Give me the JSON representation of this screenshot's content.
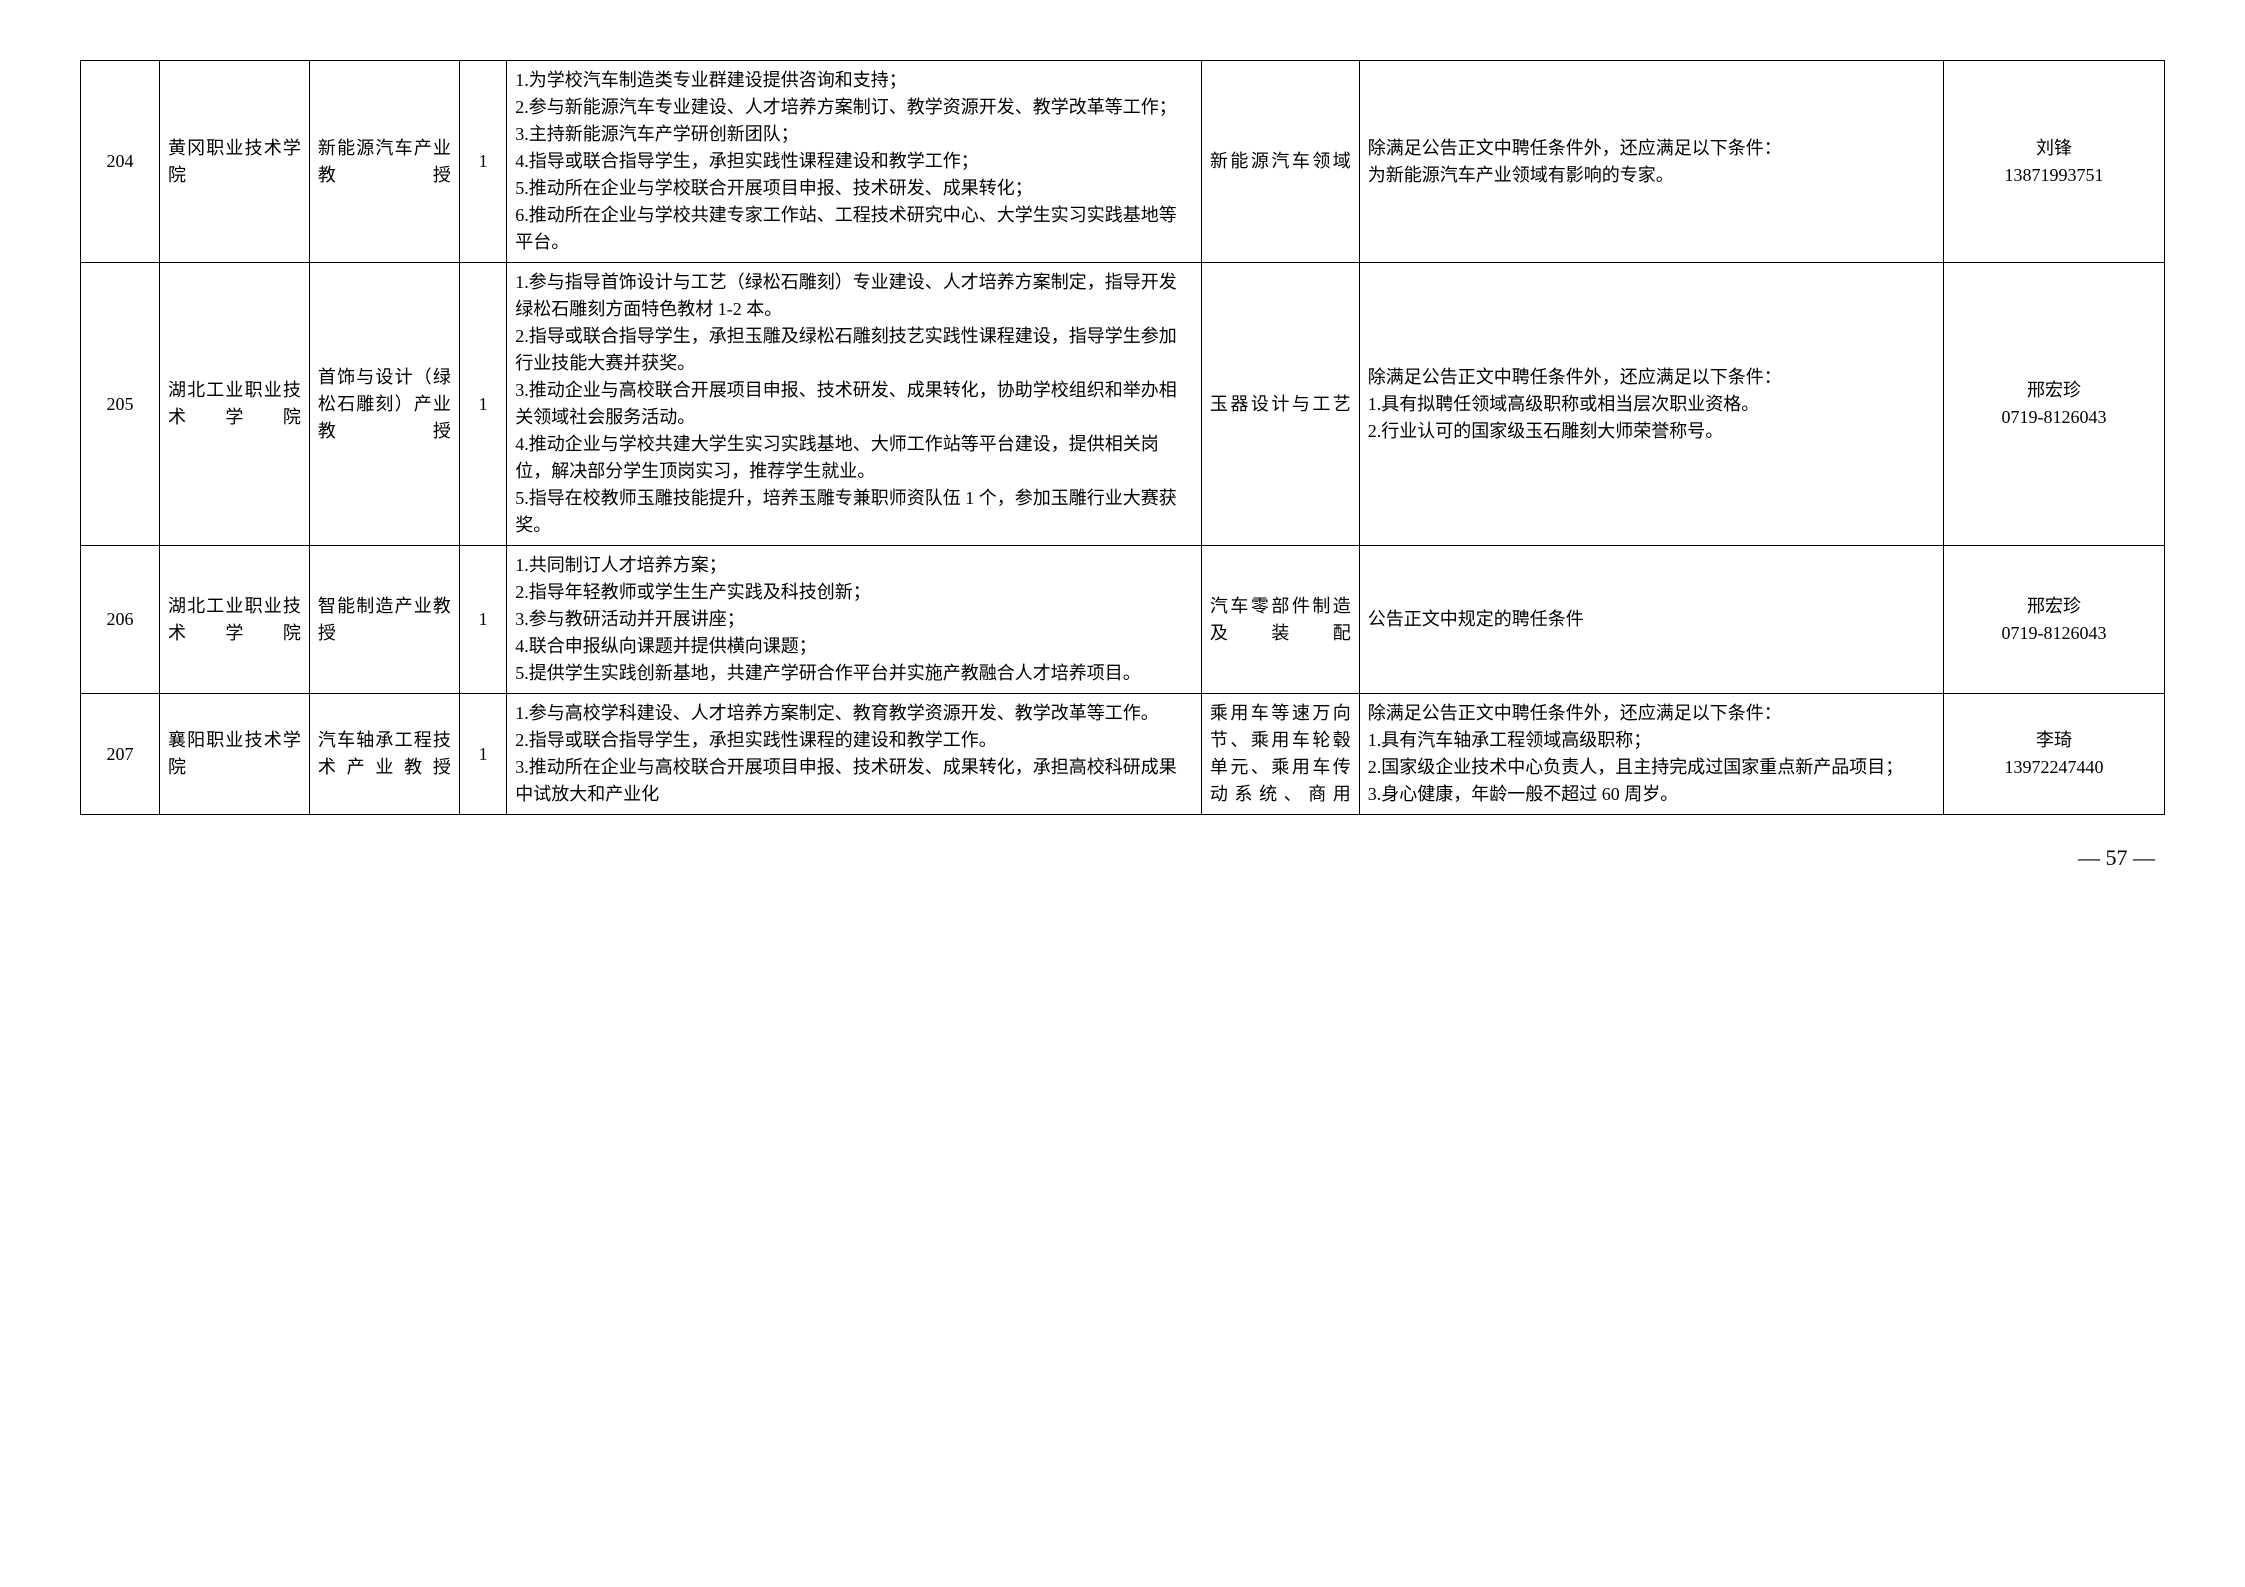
{
  "rows": [
    {
      "num": "204",
      "school": "黄冈职业技术学院",
      "title": "新能源汽车产业教授",
      "count": "1",
      "duty": "1.为学校汽车制造类专业群建设提供咨询和支持；\n2.参与新能源汽车专业建设、人才培养方案制订、教学资源开发、教学改革等工作；\n3.主持新能源汽车产学研创新团队；\n4.指导或联合指导学生，承担实践性课程建设和教学工作；\n5.推动所在企业与学校联合开展项目申报、技术研发、成果转化；\n6.推动所在企业与学校共建专家工作站、工程技术研究中心、大学生实习实践基地等平台。",
      "field": "新能源汽车领域",
      "req": "除满足公告正文中聘任条件外，还应满足以下条件：\n为新能源汽车产业领域有影响的专家。",
      "contact": "刘锋\n13871993751"
    },
    {
      "num": "205",
      "school": "湖北工业职业技术学院",
      "title": "首饰与设计（绿松石雕刻）产业教授",
      "count": "1",
      "duty": "1.参与指导首饰设计与工艺（绿松石雕刻）专业建设、人才培养方案制定，指导开发绿松石雕刻方面特色教材 1-2 本。\n2.指导或联合指导学生，承担玉雕及绿松石雕刻技艺实践性课程建设，指导学生参加行业技能大赛并获奖。\n3.推动企业与高校联合开展项目申报、技术研发、成果转化，协助学校组织和举办相关领域社会服务活动。\n4.推动企业与学校共建大学生实习实践基地、大师工作站等平台建设，提供相关岗位，解决部分学生顶岗实习，推荐学生就业。\n5.指导在校教师玉雕技能提升，培养玉雕专兼职师资队伍 1 个，参加玉雕行业大赛获奖。",
      "field": "玉器设计与工艺",
      "req": "除满足公告正文中聘任条件外，还应满足以下条件：\n1.具有拟聘任领域高级职称或相当层次职业资格。\n2.行业认可的国家级玉石雕刻大师荣誉称号。",
      "contact": "邢宏珍\n0719-8126043"
    },
    {
      "num": "206",
      "school": "湖北工业职业技术学院",
      "title": "智能制造产业教授",
      "count": "1",
      "duty": "1.共同制订人才培养方案；\n2.指导年轻教师或学生生产实践及科技创新；\n3.参与教研活动并开展讲座；\n4.联合申报纵向课题并提供横向课题；\n5.提供学生实践创新基地，共建产学研合作平台并实施产教融合人才培养项目。",
      "field": "汽车零部件制造及装配",
      "req": "公告正文中规定的聘任条件",
      "contact": "邢宏珍\n0719-8126043"
    },
    {
      "num": "207",
      "school": "襄阳职业技术学院",
      "title": "汽车轴承工程技术产业教授",
      "count": "1",
      "duty": "1.参与高校学科建设、人才培养方案制定、教育教学资源开发、教学改革等工作。\n2.指导或联合指导学生，承担实践性课程的建设和教学工作。\n3.推动所在企业与高校联合开展项目申报、技术研发、成果转化，承担高校科研成果中试放大和产业化",
      "field": "乘用车等速万向节、乘用车轮毂单元、乘用车传动系统、商用",
      "req": "除满足公告正文中聘任条件外，还应满足以下条件：\n1.具有汽车轴承工程领域高级职称；\n2.国家级企业技术中心负责人，且主持完成过国家重点新产品项目；\n3.身心健康，年龄一般不超过 60 周岁。",
      "contact": "李琦\n13972247440"
    }
  ],
  "pageNum": "— 57 —"
}
